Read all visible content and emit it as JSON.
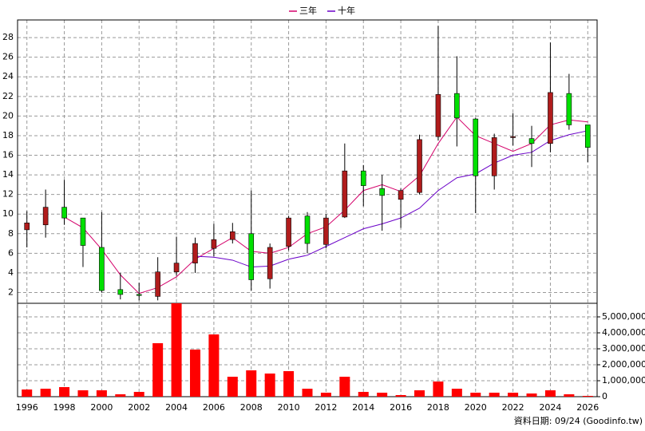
{
  "chart_data": {
    "type": "candlestick",
    "x": [
      1996,
      1997,
      1998,
      1999,
      2000,
      2001,
      2002,
      2003,
      2004,
      2005,
      2006,
      2007,
      2008,
      2009,
      2010,
      2011,
      2012,
      2013,
      2014,
      2015,
      2016,
      2017,
      2018,
      2019,
      2020,
      2021,
      2022,
      2023,
      2024,
      2025,
      2026
    ],
    "open": [
      8.4,
      8.9,
      10.7,
      9.6,
      6.6,
      2.3,
      1.8,
      1.6,
      4.1,
      5.0,
      6.5,
      7.4,
      8.0,
      3.4,
      6.7,
      9.8,
      6.9,
      9.7,
      14.4,
      12.6,
      11.5,
      12.2,
      17.9,
      22.3,
      19.7,
      13.9,
      17.8,
      17.7,
      17.2,
      22.3,
      19.1
    ],
    "high": [
      10.3,
      12.5,
      13.5,
      9.6,
      10.2,
      4.0,
      3.0,
      5.6,
      7.7,
      7.6,
      9.0,
      9.1,
      12.4,
      7.0,
      9.8,
      10.2,
      10.0,
      17.2,
      15.0,
      14.0,
      12.6,
      18.1,
      29.2,
      26.1,
      19.8,
      18.2,
      20.3,
      19.0,
      27.5,
      24.3,
      19.1
    ],
    "low": [
      6.6,
      7.6,
      8.9,
      4.6,
      2.0,
      1.3,
      1.2,
      1.2,
      3.7,
      4.0,
      5.7,
      7.0,
      2.2,
      2.4,
      6.3,
      6.0,
      6.5,
      9.6,
      10.8,
      8.3,
      8.6,
      12.0,
      17.5,
      16.9,
      10.1,
      12.5,
      17.0,
      14.8,
      16.3,
      18.6,
      15.3
    ],
    "close": [
      9.1,
      10.7,
      9.6,
      6.8,
      2.2,
      1.8,
      1.7,
      4.1,
      5.0,
      7.0,
      7.4,
      8.2,
      3.3,
      6.6,
      9.6,
      7.0,
      9.6,
      14.4,
      12.9,
      11.9,
      12.4,
      17.6,
      22.2,
      19.8,
      13.9,
      17.8,
      17.9,
      17.2,
      22.4,
      19.1,
      16.8
    ],
    "up_color": "#b01c1c",
    "down_color": "#00e000",
    "lines": [
      {
        "name": "三年",
        "color": "#d4006a",
        "values": [
          null,
          null,
          9.7,
          8.6,
          6.4,
          3.8,
          1.9,
          2.5,
          3.6,
          5.4,
          6.5,
          7.6,
          6.2,
          6.0,
          6.6,
          8.0,
          8.7,
          10.4,
          12.4,
          13.0,
          12.3,
          13.9,
          17.2,
          19.9,
          18.0,
          17.2,
          16.4,
          17.2,
          19.1,
          19.6,
          19.4
        ]
      },
      {
        "name": "十年",
        "color": "#6a00c8",
        "values": [
          null,
          null,
          null,
          null,
          null,
          null,
          null,
          null,
          null,
          5.7,
          5.6,
          5.3,
          4.6,
          4.7,
          5.4,
          5.8,
          6.7,
          7.6,
          8.5,
          9.0,
          9.6,
          10.6,
          12.4,
          13.7,
          14.1,
          15.2,
          16.0,
          16.3,
          17.5,
          18.1,
          18.5
        ]
      }
    ],
    "xlim": [
      1995.5,
      2026.5
    ],
    "xticks": [
      1996,
      1998,
      2000,
      2002,
      2004,
      2006,
      2008,
      2010,
      2012,
      2014,
      2016,
      2018,
      2020,
      2022,
      2024,
      2026
    ],
    "ylim": [
      0.9,
      29.8
    ],
    "yticks": [
      2,
      4,
      6,
      8,
      10,
      12,
      14,
      16,
      18,
      20,
      22,
      24,
      26,
      28
    ],
    "grid": true,
    "volume": {
      "color": "#ff0000",
      "values": [
        450000,
        500000,
        600000,
        400000,
        400000,
        150000,
        300000,
        3350000,
        5850000,
        2950000,
        3900000,
        1250000,
        1650000,
        1450000,
        1600000,
        500000,
        250000,
        1250000,
        300000,
        250000,
        100000,
        400000,
        950000,
        500000,
        250000,
        250000,
        250000,
        200000,
        400000,
        150000,
        50000
      ],
      "ylim": [
        0,
        5850000
      ],
      "yticks": [
        0,
        {
          "value": 1000000,
          "label": "1,000,000"
        },
        {
          "value": 2000000,
          "label": "2,000,000"
        },
        {
          "value": 3000000,
          "label": "3,000,000"
        },
        {
          "value": 4000000,
          "label": "4,000,000"
        },
        {
          "value": 5000000,
          "label": "5,000,000"
        }
      ]
    },
    "source_note": "資料日期: 09/24  (Goodinfo.tw)"
  }
}
